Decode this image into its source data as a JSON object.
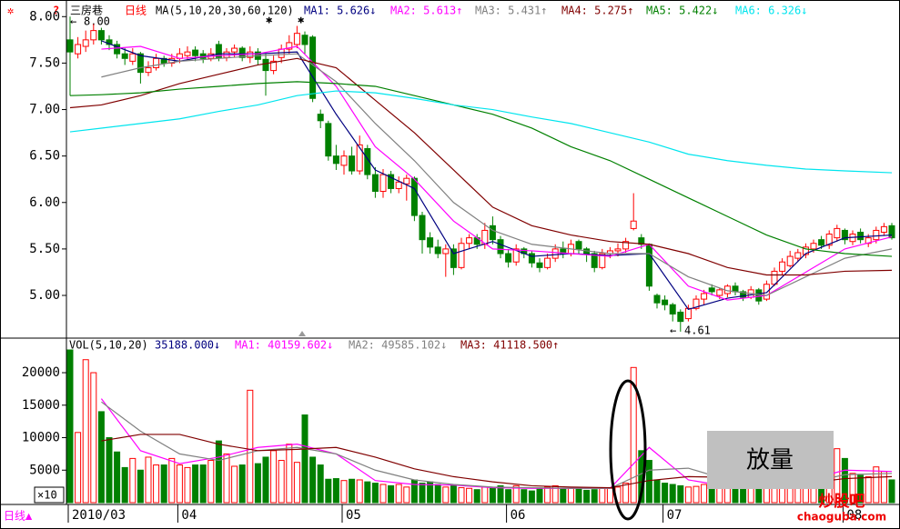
{
  "chart_data": {
    "type": "candlestick",
    "title": "三房巷",
    "period": "日线",
    "ma_header": "MA(5,10,20,30,60,120)",
    "ma_labels": [
      {
        "label": "MA1: 5.626↓",
        "color": "#000080"
      },
      {
        "label": "MA2: 5.613↑",
        "color": "#ff00ff"
      },
      {
        "label": "MA3: 5.431↑",
        "color": "#808080"
      },
      {
        "label": "MA4: 5.275↑",
        "color": "#800000"
      },
      {
        "label": "MA5: 5.422↓",
        "color": "#008000"
      },
      {
        "label": "MA6: 6.326↓",
        "color": "#00e5ee"
      }
    ],
    "up_color": "#ff0000",
    "down_color": "#008000",
    "ylim": [
      4.56,
      8.13
    ],
    "yticks": [
      {
        "value": 8,
        "label": "8.00"
      },
      {
        "value": 7.5,
        "label": "7.50"
      },
      {
        "value": 7,
        "label": "7.00"
      },
      {
        "value": 6.5,
        "label": "6.50"
      },
      {
        "value": 6,
        "label": "6.00"
      },
      {
        "value": 5.5,
        "label": "5.50"
      },
      {
        "value": 5,
        "label": "5.00"
      }
    ],
    "categories": [
      "2010/03",
      null,
      null,
      null,
      null,
      null,
      null,
      null,
      null,
      null,
      null,
      null,
      null,
      null,
      "04",
      null,
      null,
      null,
      null,
      null,
      null,
      null,
      null,
      null,
      null,
      null,
      null,
      null,
      null,
      null,
      null,
      null,
      null,
      null,
      null,
      "05",
      null,
      null,
      null,
      null,
      null,
      null,
      null,
      null,
      null,
      null,
      null,
      null,
      null,
      null,
      null,
      null,
      null,
      null,
      null,
      null,
      "06",
      null,
      null,
      null,
      null,
      null,
      null,
      null,
      null,
      null,
      null,
      null,
      null,
      null,
      null,
      null,
      null,
      null,
      null,
      null,
      "07",
      null,
      null,
      null,
      null,
      null,
      null,
      null,
      null,
      null,
      null,
      null,
      null,
      null,
      null,
      null,
      null,
      null,
      null,
      null,
      null,
      null,
      null,
      "08",
      null,
      null,
      null,
      null,
      null,
      null
    ],
    "ohlc": [
      [
        7.75,
        8.0,
        7.15,
        7.62
      ],
      [
        7.6,
        7.78,
        7.55,
        7.7
      ],
      [
        7.68,
        7.85,
        7.62,
        7.75
      ],
      [
        7.75,
        7.92,
        7.7,
        7.85
      ],
      [
        7.85,
        7.88,
        7.7,
        7.75
      ],
      [
        7.75,
        7.8,
        7.64,
        7.7
      ],
      [
        7.7,
        7.74,
        7.55,
        7.6
      ],
      [
        7.6,
        7.66,
        7.48,
        7.55
      ],
      [
        7.52,
        7.66,
        7.48,
        7.6
      ],
      [
        7.6,
        7.62,
        7.28,
        7.4
      ],
      [
        7.4,
        7.52,
        7.36,
        7.45
      ],
      [
        7.45,
        7.6,
        7.42,
        7.55
      ],
      [
        7.55,
        7.58,
        7.46,
        7.5
      ],
      [
        7.5,
        7.6,
        7.46,
        7.55
      ],
      [
        7.55,
        7.66,
        7.5,
        7.6
      ],
      [
        7.58,
        7.68,
        7.54,
        7.62
      ],
      [
        7.64,
        7.68,
        7.52,
        7.58
      ],
      [
        7.6,
        7.64,
        7.5,
        7.55
      ],
      [
        7.55,
        7.66,
        7.52,
        7.6
      ],
      [
        7.7,
        7.74,
        7.52,
        7.56
      ],
      [
        7.56,
        7.66,
        7.52,
        7.62
      ],
      [
        7.62,
        7.7,
        7.56,
        7.66
      ],
      [
        7.66,
        7.68,
        7.52,
        7.56
      ],
      [
        7.56,
        7.68,
        7.5,
        7.62
      ],
      [
        7.62,
        7.66,
        7.48,
        7.54
      ],
      [
        7.54,
        7.6,
        7.15,
        7.42
      ],
      [
        7.42,
        7.58,
        7.38,
        7.52
      ],
      [
        7.56,
        7.7,
        7.5,
        7.65
      ],
      [
        7.65,
        7.8,
        7.6,
        7.72
      ],
      [
        7.7,
        7.9,
        7.66,
        7.82
      ],
      [
        7.8,
        7.84,
        7.6,
        7.7
      ],
      [
        7.78,
        7.8,
        7.08,
        7.12
      ],
      [
        6.95,
        7.0,
        6.8,
        6.88
      ],
      [
        6.85,
        6.88,
        6.45,
        6.5
      ],
      [
        6.5,
        6.62,
        6.35,
        6.42
      ],
      [
        6.4,
        6.56,
        6.3,
        6.5
      ],
      [
        6.5,
        6.6,
        6.3,
        6.34
      ],
      [
        6.34,
        6.72,
        6.3,
        6.62
      ],
      [
        6.58,
        6.62,
        6.25,
        6.3
      ],
      [
        6.3,
        6.38,
        6.05,
        6.12
      ],
      [
        6.12,
        6.36,
        6.05,
        6.3
      ],
      [
        6.3,
        6.34,
        6.1,
        6.15
      ],
      [
        6.15,
        6.28,
        6.1,
        6.22
      ],
      [
        6.2,
        6.3,
        6.02,
        6.26
      ],
      [
        6.26,
        6.28,
        5.8,
        5.86
      ],
      [
        5.86,
        5.9,
        5.45,
        5.6
      ],
      [
        5.62,
        5.68,
        5.45,
        5.52
      ],
      [
        5.52,
        5.6,
        5.4,
        5.45
      ],
      [
        5.45,
        5.55,
        5.2,
        5.5
      ],
      [
        5.5,
        5.55,
        5.22,
        5.3
      ],
      [
        5.3,
        5.62,
        5.28,
        5.56
      ],
      [
        5.56,
        5.66,
        5.5,
        5.62
      ],
      [
        5.62,
        5.66,
        5.5,
        5.55
      ],
      [
        5.55,
        5.78,
        5.5,
        5.7
      ],
      [
        5.75,
        5.85,
        5.55,
        5.6
      ],
      [
        5.6,
        5.64,
        5.4,
        5.45
      ],
      [
        5.45,
        5.5,
        5.3,
        5.36
      ],
      [
        5.36,
        5.55,
        5.32,
        5.5
      ],
      [
        5.5,
        5.52,
        5.4,
        5.45
      ],
      [
        5.45,
        5.48,
        5.3,
        5.35
      ],
      [
        5.35,
        5.4,
        5.25,
        5.3
      ],
      [
        5.3,
        5.45,
        5.28,
        5.4
      ],
      [
        5.4,
        5.55,
        5.36,
        5.5
      ],
      [
        5.5,
        5.58,
        5.4,
        5.45
      ],
      [
        5.45,
        5.6,
        5.42,
        5.55
      ],
      [
        5.58,
        5.6,
        5.45,
        5.5
      ],
      [
        5.5,
        5.52,
        5.36,
        5.45
      ],
      [
        5.45,
        5.48,
        5.25,
        5.3
      ],
      [
        5.3,
        5.5,
        5.28,
        5.45
      ],
      [
        5.45,
        5.52,
        5.4,
        5.48
      ],
      [
        5.48,
        5.56,
        5.42,
        5.5
      ],
      [
        5.5,
        5.62,
        5.46,
        5.58
      ],
      [
        5.72,
        6.1,
        5.7,
        5.8
      ],
      [
        5.62,
        5.66,
        5.5,
        5.55
      ],
      [
        5.55,
        5.56,
        5.05,
        5.1
      ],
      [
        5.0,
        5.02,
        4.86,
        4.92
      ],
      [
        4.95,
        5.0,
        4.84,
        4.9
      ],
      [
        4.9,
        4.92,
        4.72,
        4.8
      ],
      [
        4.82,
        4.85,
        4.61,
        4.72
      ],
      [
        4.75,
        4.9,
        4.72,
        4.86
      ],
      [
        4.86,
        5.0,
        4.84,
        4.96
      ],
      [
        4.96,
        5.06,
        4.9,
        5.02
      ],
      [
        5.08,
        5.12,
        5.0,
        5.04
      ],
      [
        5.0,
        5.08,
        4.96,
        5.06
      ],
      [
        5.02,
        5.12,
        4.98,
        5.1
      ],
      [
        5.1,
        5.14,
        5.0,
        5.04
      ],
      [
        5.04,
        5.06,
        4.94,
        4.98
      ],
      [
        4.98,
        5.1,
        4.96,
        5.06
      ],
      [
        5.06,
        5.08,
        4.9,
        4.94
      ],
      [
        4.96,
        5.16,
        4.94,
        5.12
      ],
      [
        5.12,
        5.3,
        5.1,
        5.26
      ],
      [
        5.26,
        5.4,
        5.22,
        5.36
      ],
      [
        5.32,
        5.48,
        5.3,
        5.42
      ],
      [
        5.4,
        5.5,
        5.36,
        5.46
      ],
      [
        5.44,
        5.56,
        5.4,
        5.52
      ],
      [
        5.5,
        5.6,
        5.46,
        5.56
      ],
      [
        5.6,
        5.64,
        5.5,
        5.54
      ],
      [
        5.54,
        5.7,
        5.5,
        5.66
      ],
      [
        5.62,
        5.76,
        5.58,
        5.72
      ],
      [
        5.7,
        5.72,
        5.55,
        5.6
      ],
      [
        5.58,
        5.7,
        5.54,
        5.66
      ],
      [
        5.68,
        5.72,
        5.56,
        5.6
      ],
      [
        5.56,
        5.66,
        5.52,
        5.62
      ],
      [
        5.6,
        5.74,
        5.56,
        5.7
      ],
      [
        5.68,
        5.78,
        5.64,
        5.74
      ],
      [
        5.75,
        5.78,
        5.6,
        5.62
      ]
    ],
    "ma_lines": [
      {
        "color": "#000080",
        "x": [
          4,
          9,
          14,
          19,
          24,
          29,
          34,
          39,
          44,
          49,
          54,
          59,
          64,
          69,
          74,
          79,
          84,
          89,
          94,
          99,
          105
        ],
        "values": [
          7.74,
          7.58,
          7.52,
          7.6,
          7.6,
          7.62,
          6.95,
          6.35,
          6.15,
          5.45,
          5.58,
          5.42,
          5.45,
          5.43,
          5.45,
          4.85,
          4.97,
          5.03,
          5.45,
          5.62,
          5.65
        ]
      },
      {
        "color": "#ff00ff",
        "x": [
          4,
          9,
          14,
          19,
          24,
          29,
          34,
          39,
          44,
          49,
          54,
          59,
          64,
          69,
          74,
          79,
          84,
          89,
          94,
          99,
          105
        ],
        "values": [
          7.65,
          7.68,
          7.55,
          7.58,
          7.6,
          7.68,
          7.25,
          6.6,
          6.25,
          5.8,
          5.5,
          5.48,
          5.45,
          5.42,
          5.55,
          5.1,
          4.95,
          5.0,
          5.25,
          5.5,
          5.63
        ]
      },
      {
        "color": "#808080",
        "x": [
          4,
          9,
          14,
          19,
          24,
          29,
          34,
          39,
          44,
          49,
          54,
          59,
          64,
          69,
          74,
          79,
          84,
          89,
          94,
          99,
          105
        ],
        "values": [
          7.35,
          7.45,
          7.52,
          7.55,
          7.58,
          7.6,
          7.3,
          6.85,
          6.45,
          6.0,
          5.7,
          5.55,
          5.5,
          5.45,
          5.45,
          5.2,
          5.05,
          5.0,
          5.2,
          5.4,
          5.5
        ]
      },
      {
        "color": "#800000",
        "x": [
          0,
          4,
          9,
          14,
          19,
          24,
          29,
          34,
          39,
          44,
          49,
          54,
          59,
          64,
          69,
          74,
          79,
          84,
          89,
          94,
          99,
          105
        ],
        "values": [
          7.02,
          7.05,
          7.15,
          7.28,
          7.38,
          7.48,
          7.55,
          7.45,
          7.1,
          6.75,
          6.35,
          5.95,
          5.75,
          5.65,
          5.58,
          5.55,
          5.45,
          5.3,
          5.22,
          5.22,
          5.26,
          5.27
        ]
      },
      {
        "color": "#008000",
        "x": [
          0,
          4,
          9,
          14,
          19,
          24,
          29,
          34,
          39,
          44,
          49,
          54,
          59,
          64,
          69,
          74,
          79,
          84,
          89,
          94,
          99,
          105
        ],
        "values": [
          7.15,
          7.16,
          7.18,
          7.22,
          7.25,
          7.28,
          7.3,
          7.28,
          7.25,
          7.15,
          7.05,
          6.95,
          6.8,
          6.6,
          6.45,
          6.25,
          6.05,
          5.85,
          5.65,
          5.5,
          5.45,
          5.42
        ]
      },
      {
        "color": "#00e5ee",
        "x": [
          0,
          4,
          9,
          14,
          19,
          24,
          29,
          34,
          39,
          44,
          49,
          54,
          59,
          64,
          69,
          74,
          79,
          84,
          89,
          94,
          99,
          105
        ],
        "values": [
          6.76,
          6.8,
          6.85,
          6.9,
          6.98,
          7.05,
          7.15,
          7.2,
          7.18,
          7.12,
          7.05,
          7.0,
          6.92,
          6.85,
          6.75,
          6.65,
          6.52,
          6.45,
          6.4,
          6.36,
          6.34,
          6.32
        ]
      }
    ],
    "high_label": "8.00",
    "low_label": "4.61",
    "volume": {
      "header": "VOL(5,10,20)",
      "labels": [
        {
          "label": "35188.000↓",
          "color": "#000080"
        },
        {
          "label": "MA1: 40159.602↓",
          "color": "#ff00ff"
        },
        {
          "label": "MA2: 49585.102↓",
          "color": "#808080"
        },
        {
          "label": "MA3: 41118.500↑",
          "color": "#800000"
        }
      ],
      "ylim": [
        0,
        24900
      ],
      "yticks": [
        20000,
        15000,
        10000,
        5000
      ],
      "multiplier": "×10",
      "values": [
        23500,
        10800,
        22000,
        20000,
        14000,
        10000,
        7800,
        5400,
        6800,
        5000,
        7000,
        5800,
        5800,
        6800,
        5800,
        5400,
        5800,
        5800,
        6500,
        9500,
        7500,
        5600,
        5800,
        17300,
        6000,
        7000,
        8000,
        6500,
        9000,
        6200,
        13500,
        7000,
        5800,
        3600,
        3700,
        3400,
        3600,
        3500,
        3200,
        3000,
        2800,
        2600,
        2800,
        2400,
        3500,
        3000,
        3200,
        2800,
        2400,
        2600,
        2300,
        2200,
        2000,
        2400,
        2200,
        2600,
        2000,
        2600,
        2000,
        1800,
        2200,
        2400,
        2600,
        2200,
        2200,
        2100,
        1900,
        2000,
        2200,
        2200,
        2400,
        3000,
        20800,
        8000,
        6500,
        3500,
        3000,
        2800,
        2600,
        2400,
        2500,
        2800,
        2400,
        2200,
        2600,
        2400,
        2200,
        2400,
        2200,
        2800,
        3000,
        3200,
        3600,
        3600,
        3500,
        3800,
        3400,
        4000,
        8300,
        6800,
        4500,
        4200,
        4000,
        5500,
        4800,
        3500
      ],
      "ma_lines": [
        {
          "color": "#ff00ff",
          "x": [
            4,
            9,
            14,
            19,
            24,
            29,
            34,
            39,
            44,
            49,
            54,
            59,
            64,
            69,
            74,
            79,
            84,
            89,
            94,
            99,
            105
          ],
          "values": [
            16000,
            8000,
            6000,
            7000,
            8500,
            9000,
            7500,
            3400,
            2800,
            2700,
            2300,
            2200,
            2200,
            2200,
            8500,
            3500,
            2500,
            2500,
            3400,
            5000,
            4800
          ]
        },
        {
          "color": "#808080",
          "x": [
            4,
            9,
            14,
            19,
            24,
            29,
            34,
            39,
            44,
            49,
            54,
            59,
            64,
            69,
            74,
            79,
            84,
            89,
            94,
            99,
            105
          ],
          "values": [
            15500,
            11000,
            7500,
            6500,
            8000,
            8500,
            7500,
            5000,
            3500,
            2800,
            2400,
            2300,
            2200,
            2200,
            5000,
            5300,
            3500,
            2600,
            3000,
            4300,
            4500
          ]
        },
        {
          "color": "#800000",
          "x": [
            4,
            9,
            14,
            19,
            24,
            29,
            34,
            39,
            44,
            49,
            54,
            59,
            64,
            69,
            74,
            79,
            84,
            89,
            94,
            99,
            105
          ],
          "values": [
            9500,
            10500,
            10500,
            9000,
            8000,
            8200,
            8500,
            7000,
            5200,
            4000,
            3200,
            2600,
            2400,
            2300,
            3400,
            4000,
            3900,
            3400,
            3000,
            3700,
            4000
          ]
        }
      ]
    },
    "callout": "放量",
    "bottom_period": "日线▲",
    "watermark": "炒股吧",
    "watermark_url": "chaoguba.com"
  }
}
